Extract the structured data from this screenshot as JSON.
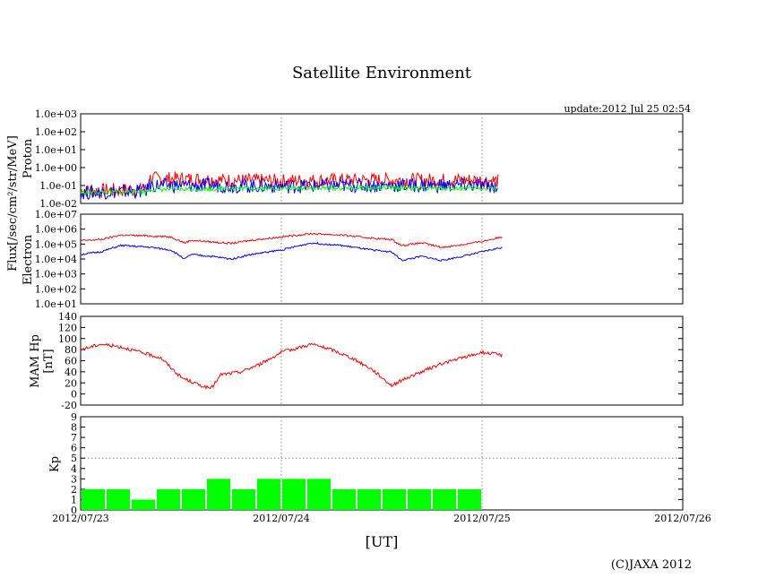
{
  "title": "Satellite Environment",
  "update": "update:2012 Jul 25 02:54",
  "copyright": "(C)JAXA 2012",
  "xlabel": "[UT]",
  "colors": {
    "red": "#ff0000",
    "blue": "#0000ff",
    "green": "#00ff00",
    "black": "#000000",
    "grid": "#888888"
  },
  "chart_data": [
    {
      "type": "line",
      "name": "proton",
      "ylabel_lines": [
        "Flux[/sec/cm²/str/MeV]",
        "Proton"
      ],
      "yscale": "log",
      "ylim": [
        0.01,
        1000
      ],
      "ytick_labels": [
        "1.0e+03",
        "1.0e+02",
        "1.0e+01",
        "1.0e+00",
        "1.0e-01",
        "1.0e-02"
      ],
      "x_days": [
        0,
        0.33,
        0.34,
        0.67,
        0.68,
        1.0,
        1.33,
        1.34,
        1.67,
        2.0,
        2.08
      ],
      "series": [
        {
          "name": "proton-red",
          "color": "red",
          "values": [
            0.05,
            0.06,
            0.25,
            0.22,
            0.2,
            0.18,
            0.2,
            0.2,
            0.2,
            0.2,
            0.18
          ]
        },
        {
          "name": "proton-blue",
          "color": "blue",
          "values": [
            0.04,
            0.05,
            0.1,
            0.1,
            0.1,
            0.09,
            0.1,
            0.1,
            0.1,
            0.1,
            0.09
          ]
        },
        {
          "name": "proton-green",
          "color": "green",
          "values": [
            0.04,
            0.045,
            0.06,
            0.065,
            0.07,
            0.07,
            0.07,
            0.075,
            0.07,
            0.07,
            0.065
          ]
        }
      ]
    },
    {
      "type": "line",
      "name": "electron",
      "ylabel_lines": [
        "Electron"
      ],
      "yscale": "log",
      "ylim": [
        10,
        10000000
      ],
      "ytick_labels": [
        "1.0e+07",
        "1.0e+06",
        "1.0e+05",
        "1.0e+04",
        "1.0e+03",
        "1.0e+02",
        "1.0e+01"
      ],
      "x_days": [
        0,
        0.1,
        0.2,
        0.35,
        0.45,
        0.52,
        0.55,
        0.65,
        0.75,
        0.85,
        1.0,
        1.15,
        1.3,
        1.45,
        1.55,
        1.6,
        1.7,
        1.8,
        1.9,
        2.0,
        2.1
      ],
      "series": [
        {
          "name": "electron-red",
          "color": "red",
          "values": [
            170000,
            200000,
            400000,
            350000,
            300000,
            120000,
            180000,
            140000,
            110000,
            180000,
            300000,
            500000,
            400000,
            250000,
            200000,
            80000,
            120000,
            60000,
            90000,
            150000,
            300000
          ]
        },
        {
          "name": "electron-blue",
          "color": "blue",
          "values": [
            20000,
            30000,
            80000,
            60000,
            40000,
            10000,
            20000,
            15000,
            10000,
            20000,
            40000,
            120000,
            80000,
            40000,
            30000,
            8000,
            15000,
            8000,
            15000,
            30000,
            60000
          ]
        }
      ]
    },
    {
      "type": "line",
      "name": "mam-hp",
      "ylabel_lines": [
        "MAM Hp",
        "[nT]"
      ],
      "yscale": "linear",
      "ylim": [
        -20,
        140
      ],
      "ytick_labels": [
        "140",
        "120",
        "100",
        "80",
        "60",
        "40",
        "20",
        "0",
        "-20"
      ],
      "x_days": [
        0,
        0.1,
        0.2,
        0.3,
        0.4,
        0.5,
        0.6,
        0.65,
        0.7,
        0.8,
        0.9,
        1.0,
        1.1,
        1.15,
        1.25,
        1.35,
        1.45,
        1.5,
        1.55,
        1.6,
        1.7,
        1.8,
        1.9,
        2.0,
        2.1
      ],
      "series": [
        {
          "name": "mam-hp-red",
          "color": "red",
          "values": [
            80,
            90,
            85,
            75,
            65,
            30,
            15,
            10,
            35,
            40,
            55,
            75,
            85,
            90,
            80,
            65,
            45,
            30,
            15,
            25,
            40,
            55,
            65,
            75,
            70
          ]
        }
      ]
    },
    {
      "type": "bar",
      "name": "kp",
      "ylabel_lines": [
        "Kp"
      ],
      "ylim": [
        0,
        9
      ],
      "ytick_labels": [
        "9",
        "8",
        "7",
        "6",
        "5",
        "4",
        "3",
        "2",
        "1",
        "0"
      ],
      "bar_width_hours": 3,
      "values": [
        2,
        2,
        1,
        2,
        2,
        3,
        2,
        3,
        3,
        3,
        2,
        2,
        2,
        2,
        2,
        2
      ],
      "color": "green"
    }
  ],
  "x_axis": {
    "range_days": [
      0,
      3
    ],
    "tick_labels": [
      "2012/07/23",
      "2012/07/24",
      "2012/07/25",
      "2012/07/26"
    ]
  }
}
